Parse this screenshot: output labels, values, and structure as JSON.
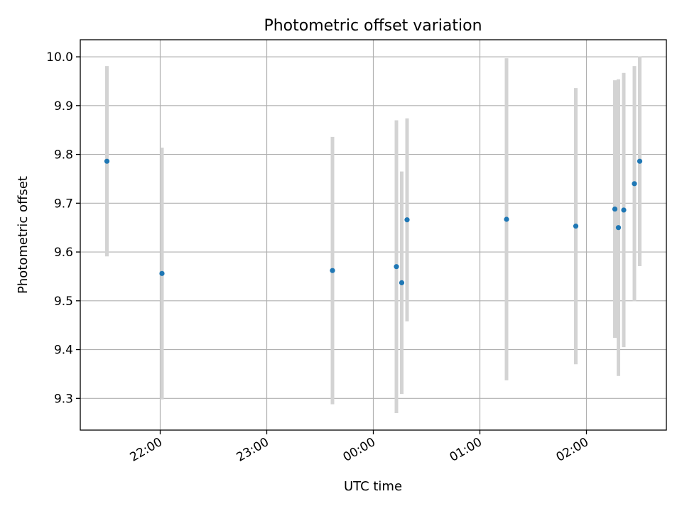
{
  "chart_data": {
    "type": "scatter",
    "title": "Photometric offset variation",
    "xlabel": "UTC time",
    "ylabel": "Photometric offset",
    "x_ticks": [
      "22:00",
      "23:00",
      "00:00",
      "01:00",
      "02:00"
    ],
    "y_ticks": [
      "9.3",
      "9.4",
      "9.5",
      "9.6",
      "9.7",
      "9.8",
      "9.9",
      "10.0"
    ],
    "xlim": [
      "21:15",
      "02:45"
    ],
    "ylim": [
      9.235,
      10.035
    ],
    "grid": true,
    "colors": {
      "point": "#1f77b4",
      "errorbar": "#d3d3d3",
      "grid": "#b0b0b0"
    },
    "points": [
      {
        "x": "21:30",
        "y": 9.786,
        "err": 0.195
      },
      {
        "x": "22:01",
        "y": 9.556,
        "err": 0.258
      },
      {
        "x": "23:37",
        "y": 9.562,
        "err": 0.274
      },
      {
        "x": "00:13",
        "y": 9.57,
        "err": 0.3
      },
      {
        "x": "00:16",
        "y": 9.537,
        "err": 0.228
      },
      {
        "x": "00:19",
        "y": 9.666,
        "err": 0.208
      },
      {
        "x": "01:15",
        "y": 9.667,
        "err": 0.33
      },
      {
        "x": "01:54",
        "y": 9.653,
        "err": 0.283
      },
      {
        "x": "02:16",
        "y": 9.688,
        "err": 0.264
      },
      {
        "x": "02:18",
        "y": 9.65,
        "err": 0.304
      },
      {
        "x": "02:21",
        "y": 9.686,
        "err": 0.281
      },
      {
        "x": "02:27",
        "y": 9.74,
        "err": 0.241
      },
      {
        "x": "02:30",
        "y": 9.786,
        "err": 0.215
      }
    ]
  }
}
